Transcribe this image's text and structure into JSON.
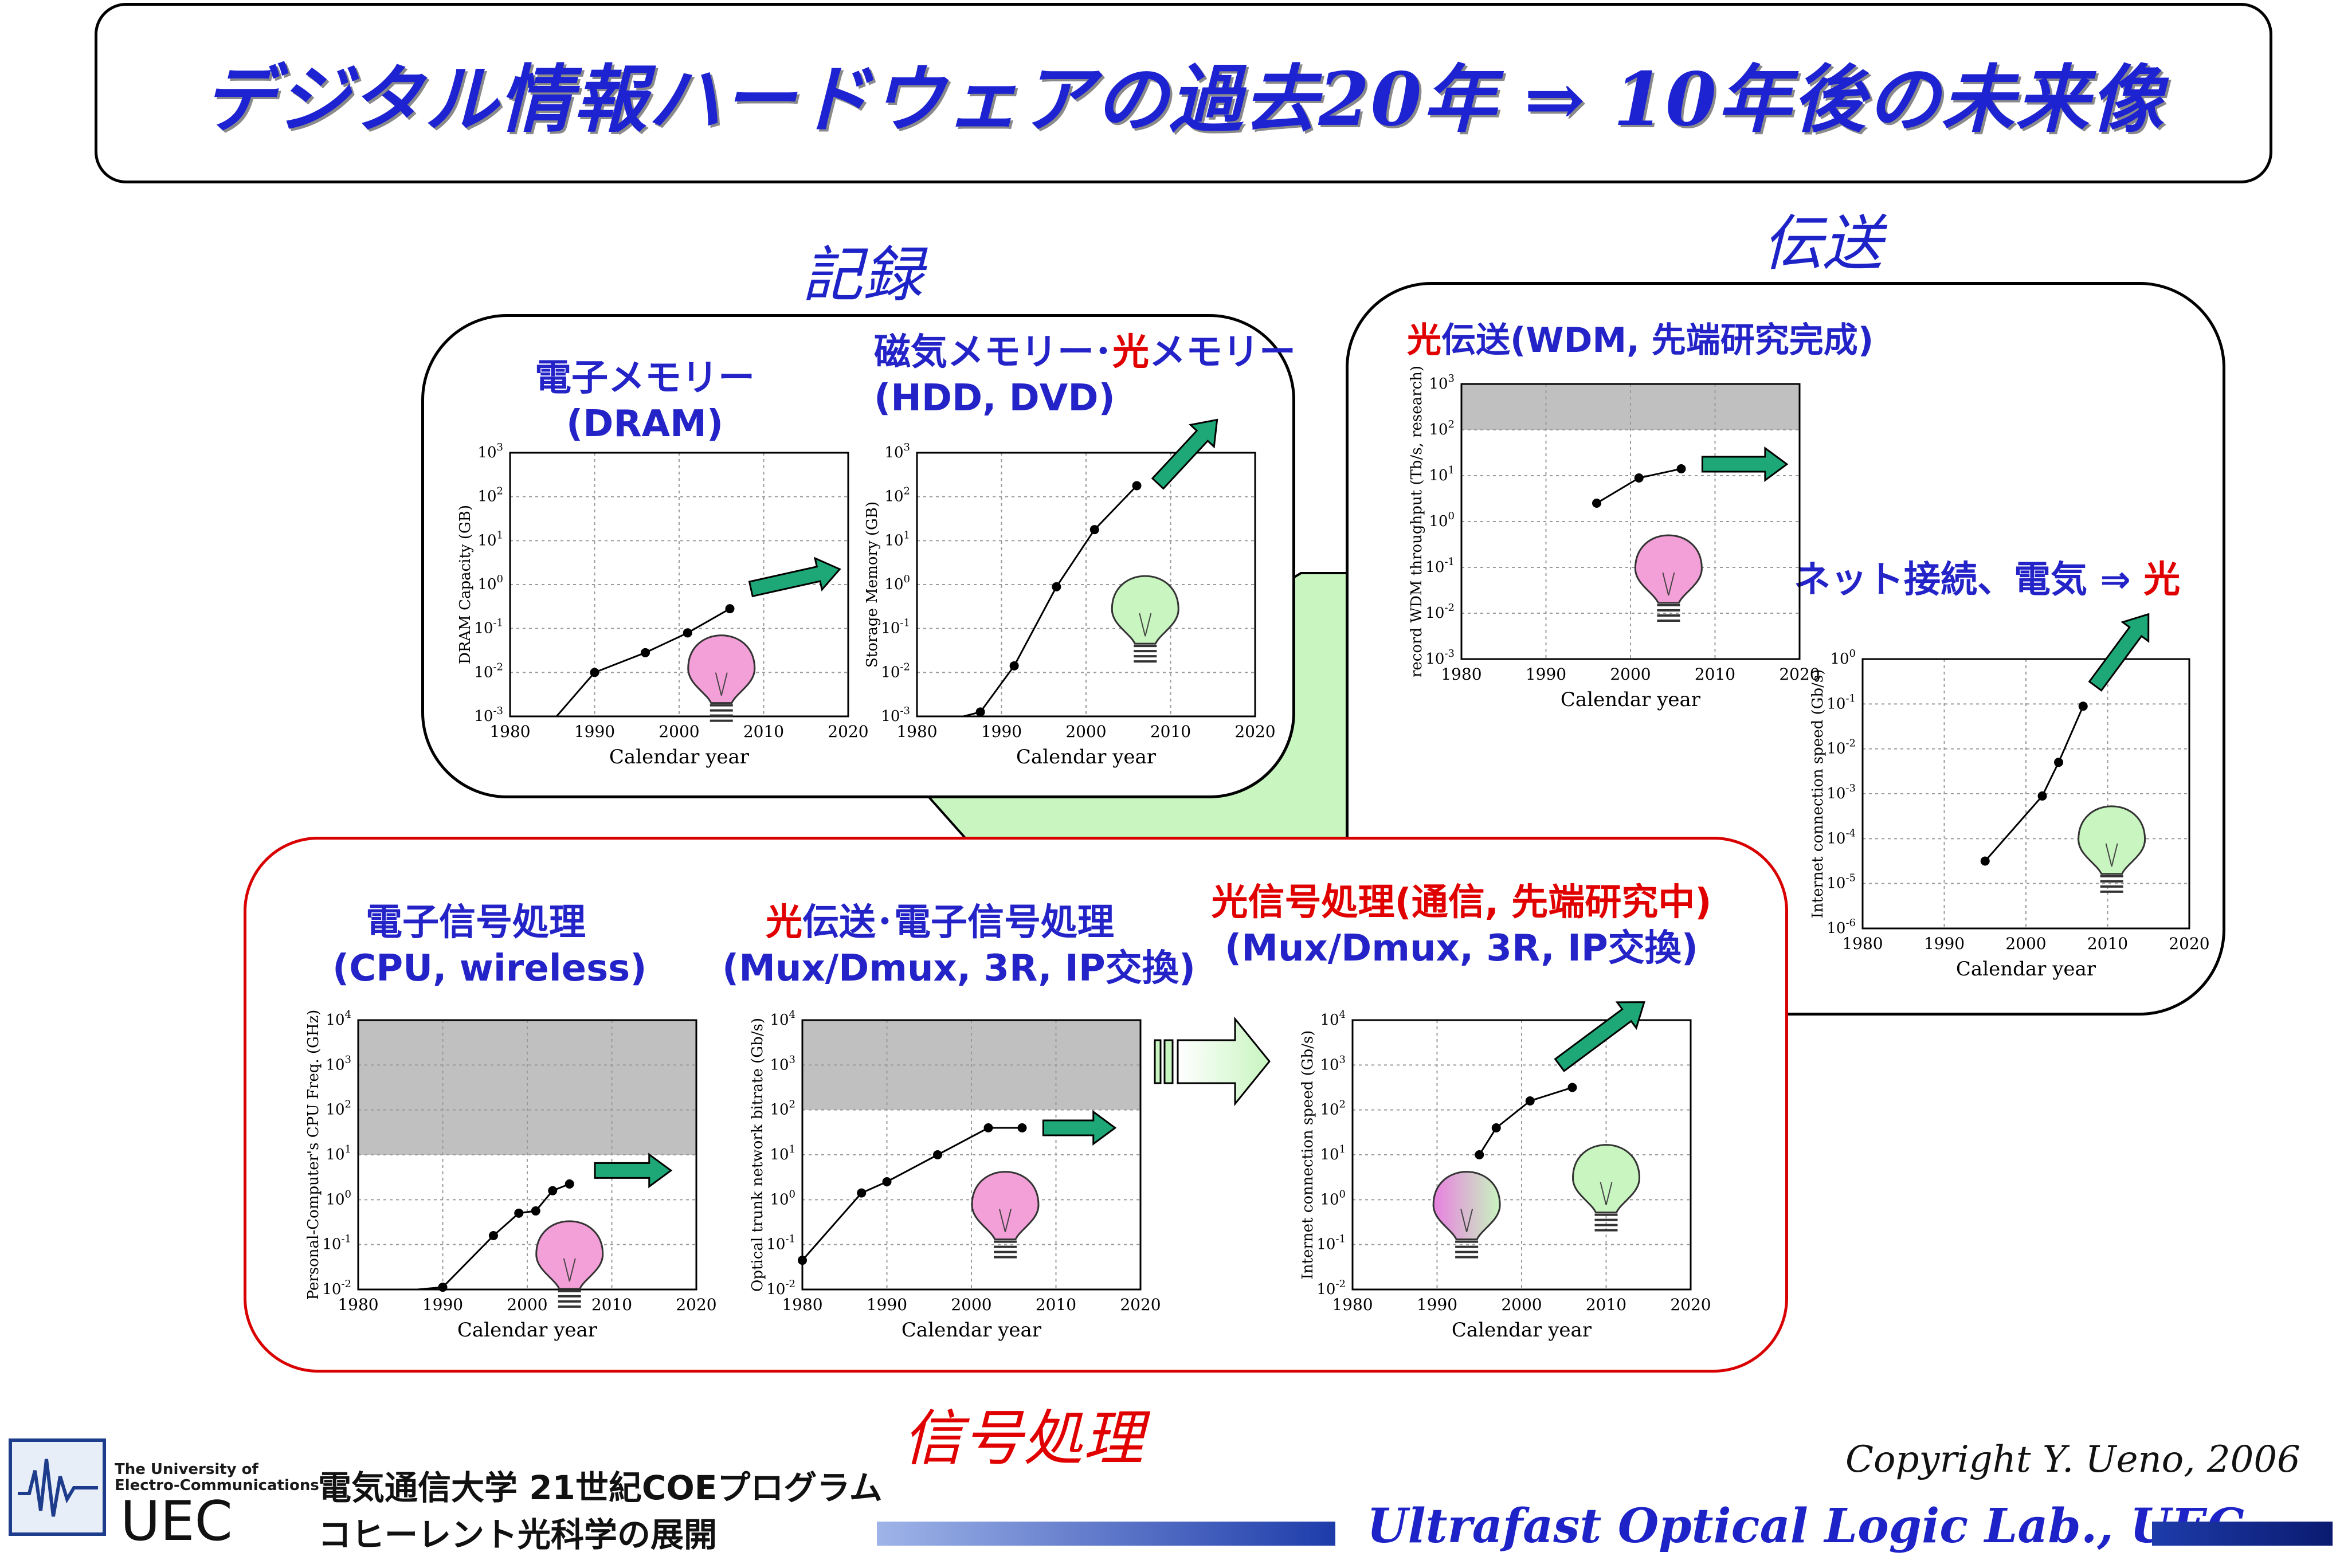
{
  "title": "デジタル情報ハードウェアの過去20年 ⇒ 10年後の未来像",
  "sections": {
    "recording": "記録",
    "transmission": "伝送",
    "signal_processing": "信号処理"
  },
  "labels": {
    "dram": [
      "電子メモリー",
      "(DRAM)"
    ],
    "storage_line1_a": "磁気メモリー･",
    "storage_line1_b": "光",
    "storage_line1_c": "メモリー",
    "storage_line2": "(HDD, DVD)",
    "wdm_a": "光",
    "wdm_b": "伝送(WDM, 先端研究完成)",
    "net_a": "ネット接続、電気 ⇒ ",
    "net_b": "光",
    "cpu": [
      "電子信号処理",
      "(CPU, wireless)"
    ],
    "trunk_line1_a": "光",
    "trunk_line1_b": "伝送･電子信号処理",
    "trunk_line2": "(Mux/Dmux, 3R, IP交換)",
    "optproc_line1": "光信号処理(通信, 先端研究中)",
    "optproc_line2": "(Mux/Dmux, 3R, IP交換)"
  },
  "footer": {
    "univ_en_1": "The University of",
    "univ_en_2": "Electro-Communications",
    "univ_abbr": "UEC",
    "program_1": "電気通信大学 21世紀COEプログラム",
    "program_2": "コヒーレント光科学の展開",
    "copyright": "Copyright Y. Ueno, 2006",
    "lab": "Ultrafast Optical Logic Lab., UEC"
  },
  "colors": {
    "title_blue": "#1e23d2",
    "label_blue": "#2323c8",
    "label_red": "#e00000",
    "arrow_green": "#1ea878",
    "bulb_pink": "#f4a0d8",
    "bulb_green": "#c8f5c0",
    "band_gray": "#c0c0c0",
    "connector_green": "#c8f5c0"
  },
  "chart_data": [
    {
      "id": "dram",
      "type": "line",
      "xlabel": "Calendar year",
      "ylabel": "DRAM Capacity (GB)",
      "x_ticks": [
        1980,
        1990,
        2000,
        2010,
        2020
      ],
      "y_exp": [
        -3,
        -2,
        -1,
        0,
        1,
        2,
        3
      ],
      "xlim": [
        1980,
        2020
      ],
      "ylim_exp": [
        -3,
        3
      ],
      "points": [
        [
          1990,
          -2.0
        ],
        [
          1996,
          -1.55
        ],
        [
          2001,
          -1.1
        ],
        [
          2006,
          -0.55
        ]
      ],
      "lead_in": [
        1985.5,
        -3.0
      ],
      "arrow": {
        "from": [
          2008.5,
          -0.1
        ],
        "to": [
          2019,
          0.35
        ]
      },
      "bulb": {
        "color": "pink",
        "x": 2005,
        "y_exp": -2.2
      },
      "band": null
    },
    {
      "id": "storage",
      "type": "line",
      "xlabel": "Calendar year",
      "ylabel": "Storage Memory (GB)",
      "x_ticks": [
        1980,
        1990,
        2000,
        2010,
        2020
      ],
      "y_exp": [
        -3,
        -2,
        -1,
        0,
        1,
        2,
        3
      ],
      "xlim": [
        1980,
        2020
      ],
      "ylim_exp": [
        -3,
        3
      ],
      "points": [
        [
          1987.5,
          -2.9
        ],
        [
          1991.5,
          -1.85
        ],
        [
          1996.5,
          -0.05
        ],
        [
          2001,
          1.25
        ],
        [
          2006,
          2.25
        ]
      ],
      "lead_in": [
        1985.5,
        -3.0
      ],
      "arrow": {
        "from": [
          2008.5,
          2.3
        ],
        "to": [
          2015.5,
          3.75
        ]
      },
      "bulb": {
        "color": "green",
        "x": 2007,
        "y_exp": -0.85
      },
      "band": null
    },
    {
      "id": "wdm",
      "type": "line",
      "xlabel": "Calendar year",
      "ylabel": "record WDM throughput (Tb/s, research)",
      "x_ticks": [
        1980,
        1990,
        2000,
        2010,
        2020
      ],
      "y_exp": [
        -3,
        -2,
        -1,
        0,
        1,
        2,
        3
      ],
      "xlim": [
        1980,
        2020
      ],
      "ylim_exp": [
        -3,
        3
      ],
      "points": [
        [
          1996,
          0.4
        ],
        [
          2001,
          0.95
        ],
        [
          2006,
          1.15
        ]
      ],
      "lead_in": null,
      "arrow": {
        "from": [
          2008.5,
          1.25
        ],
        "to": [
          2018.5,
          1.25
        ]
      },
      "bulb": {
        "color": "pink",
        "x": 2004.5,
        "y_exp": -1.3
      },
      "band": {
        "from_exp": 2.0,
        "to_exp": 3.0
      }
    },
    {
      "id": "internet_speed",
      "type": "line",
      "xlabel": "Calendar year",
      "ylabel": "Internet connection speed (Gb/s)",
      "x_ticks": [
        1980,
        1990,
        2000,
        2010,
        2020
      ],
      "y_exp": [
        -6,
        -5,
        -4,
        -3,
        -2,
        -1,
        0
      ],
      "xlim": [
        1980,
        2020
      ],
      "ylim_exp": [
        -6,
        0
      ],
      "points": [
        [
          1995,
          -4.5
        ],
        [
          2002,
          -3.05
        ],
        [
          2004,
          -2.3
        ],
        [
          2007,
          -1.05
        ]
      ],
      "lead_in": null,
      "arrow": {
        "from": [
          2008.5,
          -0.6
        ],
        "to": [
          2015,
          1.0
        ]
      },
      "bulb": {
        "color": "green",
        "x": 2010.5,
        "y_exp": -4.3
      },
      "band": null
    },
    {
      "id": "cpu",
      "type": "line",
      "xlabel": "Calendar year",
      "ylabel": "Personal-Computer's CPU Freq. (GHz)",
      "x_ticks": [
        1980,
        1990,
        2000,
        2010,
        2020
      ],
      "y_exp": [
        -2,
        -1,
        0,
        1,
        2,
        3,
        4
      ],
      "xlim": [
        1980,
        2020
      ],
      "ylim_exp": [
        -2,
        4
      ],
      "points": [
        [
          1990,
          -1.95
        ],
        [
          1996,
          -0.8
        ],
        [
          1999,
          -0.3
        ],
        [
          2001,
          -0.25
        ],
        [
          2003,
          0.2
        ],
        [
          2005,
          0.35
        ]
      ],
      "lead_in": [
        1987,
        -2.0
      ],
      "arrow": {
        "from": [
          2008,
          0.65
        ],
        "to": [
          2017,
          0.65
        ]
      },
      "bulb": {
        "color": "pink",
        "x": 2005,
        "y_exp": -1.5
      },
      "band": {
        "from_exp": 1.0,
        "to_exp": 4.0
      }
    },
    {
      "id": "trunk",
      "type": "line",
      "xlabel": "Calendar year",
      "ylabel": "Optical trunk network bitrate (Gb/s)",
      "x_ticks": [
        1980,
        1990,
        2000,
        2010,
        2020
      ],
      "y_exp": [
        -2,
        -1,
        0,
        1,
        2,
        3,
        4
      ],
      "xlim": [
        1980,
        2020
      ],
      "ylim_exp": [
        -2,
        4
      ],
      "points": [
        [
          1980,
          -1.35
        ],
        [
          1987,
          0.15
        ],
        [
          1990,
          0.4
        ],
        [
          1996,
          1.0
        ],
        [
          2002,
          1.6
        ],
        [
          2006,
          1.6
        ]
      ],
      "lead_in": null,
      "arrow": {
        "from": [
          2008.5,
          1.6
        ],
        "to": [
          2017,
          1.6
        ]
      },
      "bulb": {
        "color": "pink",
        "x": 2004,
        "y_exp": -0.4
      },
      "band": {
        "from_exp": 2.0,
        "to_exp": 4.0
      }
    },
    {
      "id": "optical_processing",
      "type": "line",
      "xlabel": "Calendar year",
      "ylabel": "Internet connection speed (Gb/s)",
      "x_ticks": [
        1980,
        1990,
        2000,
        2010,
        2020
      ],
      "y_exp": [
        -2,
        -1,
        0,
        1,
        2,
        3,
        4
      ],
      "xlim": [
        1980,
        2020
      ],
      "ylim_exp": [
        -2,
        4
      ],
      "points": [
        [
          1995,
          1.0
        ],
        [
          1997,
          1.6
        ],
        [
          2001,
          2.2
        ],
        [
          2006,
          2.5
        ]
      ],
      "lead_in": null,
      "arrow": {
        "from": [
          2004.5,
          3.0
        ],
        "to": [
          2014.5,
          4.4
        ]
      },
      "bulb": {
        "color": "mixed",
        "x": 1993.5,
        "y_exp": -0.4
      },
      "bulb2": {
        "color": "green",
        "x": 2010,
        "y_exp": 0.2
      },
      "band": null
    }
  ]
}
